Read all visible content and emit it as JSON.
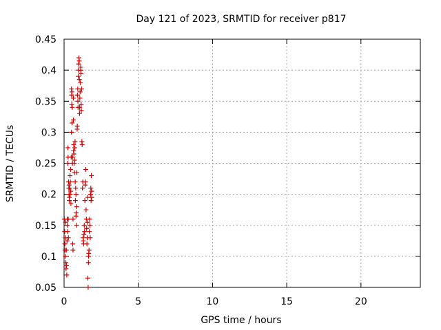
{
  "chart_data": {
    "type": "scatter",
    "title": "Day 121 of 2023, SRMTID for receiver p817",
    "xlabel": "GPS time / hours",
    "ylabel": "SRMTID / TECUs",
    "xlim": [
      0,
      24
    ],
    "ylim": [
      0.05,
      0.45
    ],
    "xticks": [
      0,
      5,
      10,
      15,
      20
    ],
    "xtick_labels": [
      "0",
      "5",
      "10",
      "15",
      "20"
    ],
    "yticks": [
      0.05,
      0.1,
      0.15,
      0.2,
      0.25,
      0.3,
      0.35,
      0.4,
      0.45
    ],
    "ytick_labels": [
      "0.05",
      "0.1",
      "0.15",
      "0.2",
      "0.25",
      "0.3",
      "0.35",
      "0.4",
      "0.45"
    ],
    "grid": true,
    "marker": "+",
    "color": "#cc0000",
    "series": [
      {
        "name": "SRMTID",
        "points": [
          [
            0.02,
            0.16
          ],
          [
            0.04,
            0.14
          ],
          [
            0.05,
            0.12
          ],
          [
            0.06,
            0.11
          ],
          [
            0.08,
            0.13
          ],
          [
            0.09,
            0.1
          ],
          [
            0.1,
            0.155
          ],
          [
            0.12,
            0.09
          ],
          [
            0.13,
            0.08
          ],
          [
            0.15,
            0.11
          ],
          [
            0.16,
            0.085
          ],
          [
            0.18,
            0.07
          ],
          [
            0.2,
            0.125
          ],
          [
            0.21,
            0.16
          ],
          [
            0.22,
            0.15
          ],
          [
            0.24,
            0.14
          ],
          [
            0.25,
            0.25
          ],
          [
            0.26,
            0.275
          ],
          [
            0.27,
            0.26
          ],
          [
            0.28,
            0.16
          ],
          [
            0.29,
            0.13
          ],
          [
            0.3,
            0.22
          ],
          [
            0.32,
            0.21
          ],
          [
            0.33,
            0.2
          ],
          [
            0.34,
            0.215
          ],
          [
            0.35,
            0.19
          ],
          [
            0.36,
            0.195
          ],
          [
            0.38,
            0.21
          ],
          [
            0.4,
            0.23
          ],
          [
            0.41,
            0.2
          ],
          [
            0.42,
            0.22
          ],
          [
            0.44,
            0.24
          ],
          [
            0.45,
            0.205
          ],
          [
            0.46,
            0.185
          ],
          [
            0.48,
            0.26
          ],
          [
            0.5,
            0.3
          ],
          [
            0.5,
            0.37
          ],
          [
            0.51,
            0.36
          ],
          [
            0.52,
            0.345
          ],
          [
            0.53,
            0.365
          ],
          [
            0.54,
            0.315
          ],
          [
            0.55,
            0.34
          ],
          [
            0.56,
            0.25
          ],
          [
            0.57,
            0.26
          ],
          [
            0.58,
            0.12
          ],
          [
            0.6,
            0.11
          ],
          [
            0.6,
            0.16
          ],
          [
            0.62,
            0.355
          ],
          [
            0.63,
            0.32
          ],
          [
            0.64,
            0.27
          ],
          [
            0.65,
            0.28
          ],
          [
            0.66,
            0.265
          ],
          [
            0.68,
            0.25
          ],
          [
            0.7,
            0.255
          ],
          [
            0.7,
            0.235
          ],
          [
            0.72,
            0.275
          ],
          [
            0.74,
            0.285
          ],
          [
            0.75,
            0.22
          ],
          [
            0.76,
            0.19
          ],
          [
            0.78,
            0.21
          ],
          [
            0.8,
            0.165
          ],
          [
            0.8,
            0.2
          ],
          [
            0.82,
            0.17
          ],
          [
            0.84,
            0.15
          ],
          [
            0.85,
            0.18
          ],
          [
            0.86,
            0.235
          ],
          [
            0.88,
            0.305
          ],
          [
            0.89,
            0.31
          ],
          [
            0.9,
            0.36
          ],
          [
            0.92,
            0.37
          ],
          [
            0.93,
            0.35
          ],
          [
            0.94,
            0.34
          ],
          [
            0.96,
            0.39
          ],
          [
            0.97,
            0.4
          ],
          [
            0.98,
            0.41
          ],
          [
            1.0,
            0.42
          ],
          [
            1.02,
            0.415
          ],
          [
            1.03,
            0.385
          ],
          [
            1.04,
            0.33
          ],
          [
            1.05,
            0.34
          ],
          [
            1.06,
            0.355
          ],
          [
            1.08,
            0.365
          ],
          [
            1.1,
            0.38
          ],
          [
            1.12,
            0.405
          ],
          [
            1.13,
            0.4
          ],
          [
            1.14,
            0.395
          ],
          [
            1.15,
            0.345
          ],
          [
            1.16,
            0.335
          ],
          [
            1.18,
            0.37
          ],
          [
            1.2,
            0.285
          ],
          [
            1.22,
            0.28
          ],
          [
            1.24,
            0.21
          ],
          [
            1.26,
            0.22
          ],
          [
            1.28,
            0.13
          ],
          [
            1.3,
            0.125
          ],
          [
            1.32,
            0.12
          ],
          [
            1.34,
            0.135
          ],
          [
            1.36,
            0.15
          ],
          [
            1.38,
            0.14
          ],
          [
            1.4,
            0.19
          ],
          [
            1.42,
            0.215
          ],
          [
            1.44,
            0.22
          ],
          [
            1.46,
            0.24
          ],
          [
            1.48,
            0.175
          ],
          [
            1.5,
            0.16
          ],
          [
            1.52,
            0.145
          ],
          [
            1.54,
            0.12
          ],
          [
            1.56,
            0.13
          ],
          [
            1.58,
            0.155
          ],
          [
            1.6,
            0.195
          ],
          [
            1.6,
            0.065
          ],
          [
            1.62,
            0.05
          ],
          [
            1.64,
            0.09
          ],
          [
            1.65,
            0.1
          ],
          [
            1.66,
            0.105
          ],
          [
            1.68,
            0.11
          ],
          [
            1.7,
            0.14
          ],
          [
            1.72,
            0.16
          ],
          [
            1.74,
            0.15
          ],
          [
            1.76,
            0.13
          ],
          [
            1.78,
            0.2
          ],
          [
            1.8,
            0.21
          ],
          [
            1.82,
            0.19
          ],
          [
            1.84,
            0.23
          ],
          [
            1.85,
            0.205
          ],
          [
            1.86,
            0.195
          ]
        ]
      }
    ]
  }
}
